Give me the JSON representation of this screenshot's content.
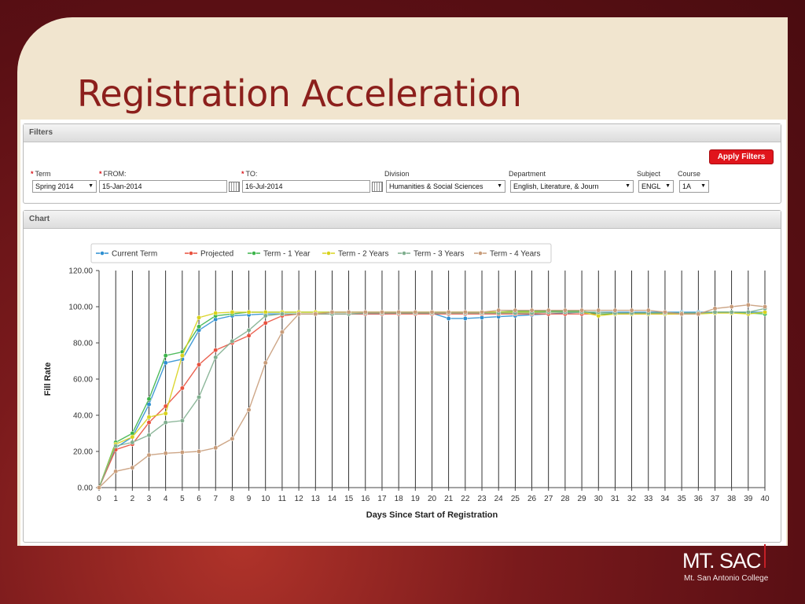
{
  "slide": {
    "title": "Registration Acceleration"
  },
  "filters": {
    "panel_title": "Filters",
    "apply_label": "Apply Filters",
    "term_label": "Term",
    "term_value": "Spring 2014",
    "from_label": "FROM:",
    "from_value": "15-Jan-2014",
    "to_label": "TO:",
    "to_value": "16-Jul-2014",
    "division_label": "Division",
    "division_value": "Humanities & Social Sciences",
    "department_label": "Department",
    "department_value": "English, Literature, & Journ",
    "subject_label": "Subject",
    "subject_value": "ENGL",
    "course_label": "Course",
    "course_value": "1A",
    "required_mark": "*",
    "dropdown_icon": "chevron-down-icon",
    "calendar_icon": "calendar-icon"
  },
  "chart_panel": {
    "title": "Chart"
  },
  "logo": {
    "name": "MT. SAC",
    "subtitle": "Mt. San Antonio College"
  },
  "chart_data": {
    "type": "line",
    "title": "",
    "xlabel": "Days Since Start of Registration",
    "ylabel": "Fill Rate",
    "x": [
      0,
      1,
      2,
      3,
      4,
      5,
      6,
      7,
      8,
      9,
      10,
      11,
      12,
      13,
      14,
      15,
      16,
      17,
      18,
      19,
      20,
      21,
      22,
      23,
      24,
      25,
      26,
      27,
      28,
      29,
      30,
      31,
      32,
      33,
      34,
      35,
      36,
      37,
      38,
      39,
      40
    ],
    "xlim": [
      0,
      40
    ],
    "ylim": [
      0,
      120
    ],
    "yticks": [
      "0.00",
      "20.00",
      "40.00",
      "60.00",
      "80.00",
      "100.00",
      "120.00"
    ],
    "grid": "vertical",
    "legend": "top",
    "series": [
      {
        "name": "Current Term",
        "color": "#2e8fd1",
        "values": [
          0,
          22,
          28,
          46,
          69,
          71,
          87,
          93,
          95,
          95.5,
          96,
          96,
          96,
          96,
          96,
          96,
          96,
          96,
          96.5,
          96.5,
          96.5,
          93.5,
          93.5,
          94,
          94.5,
          95,
          95.5,
          96,
          96.5,
          97,
          97,
          97,
          97,
          97,
          97,
          97,
          97,
          97,
          97,
          97,
          97
        ]
      },
      {
        "name": "Projected",
        "color": "#e8513e",
        "values": [
          0,
          21,
          24,
          36,
          45,
          55,
          68,
          76,
          80,
          84,
          91,
          95,
          96,
          96,
          96,
          96,
          96,
          96,
          96,
          96,
          96,
          96,
          96,
          96,
          96,
          96,
          96,
          96,
          96,
          96,
          96,
          96,
          96,
          96,
          96,
          96,
          96,
          null,
          null,
          null,
          null
        ]
      },
      {
        "name": "Term - 1 Year",
        "color": "#3cb44a",
        "values": [
          0,
          25,
          30,
          49,
          73,
          75,
          89,
          95,
          96,
          97,
          97,
          97,
          97,
          97,
          97,
          97,
          97,
          97,
          97,
          97,
          97,
          97,
          97,
          97,
          97,
          97.5,
          97.5,
          97.5,
          97.5,
          97.5,
          96,
          96,
          96.5,
          96.5,
          96.5,
          96.5,
          96.5,
          97,
          97,
          96.5,
          96
        ]
      },
      {
        "name": "Term - 2 Years",
        "color": "#d8d21c",
        "values": [
          0,
          24,
          28,
          39,
          41,
          73,
          94,
          96.5,
          97,
          97,
          97,
          97,
          97,
          97,
          97,
          97,
          97,
          97,
          97,
          97,
          97,
          97,
          97,
          97,
          97,
          97,
          97,
          97,
          97,
          97,
          95,
          96,
          96,
          96,
          96,
          96,
          96,
          96.5,
          96.5,
          96,
          97
        ]
      },
      {
        "name": "Term - 3 Years",
        "color": "#7fae8e",
        "values": [
          0,
          23,
          25,
          29,
          36,
          37,
          50,
          72,
          81,
          87,
          95,
          96,
          96,
          96,
          96,
          96,
          96.5,
          96.5,
          96.5,
          96.5,
          96.5,
          96.5,
          96.5,
          96.5,
          96.5,
          96.5,
          96.5,
          97,
          97,
          97,
          97,
          96.5,
          96.5,
          96.5,
          96.5,
          96.5,
          96.5,
          97,
          97,
          97,
          99
        ]
      },
      {
        "name": "Term - 4 Years",
        "color": "#c89c7a",
        "values": [
          0,
          9,
          11,
          18,
          19,
          19.5,
          20,
          22,
          27,
          43,
          69,
          86,
          96,
          96,
          97,
          97,
          97,
          97,
          97,
          97,
          97,
          97,
          97,
          97,
          98,
          98,
          98,
          98,
          98,
          98,
          98,
          98,
          98,
          98,
          97,
          96,
          96,
          99,
          100,
          101,
          100
        ]
      }
    ]
  }
}
